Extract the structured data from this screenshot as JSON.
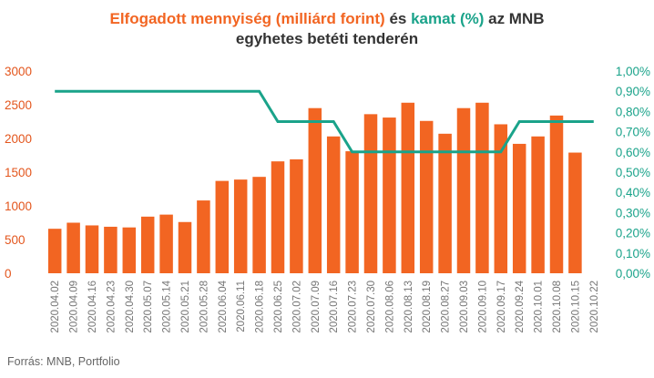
{
  "title": {
    "line1_part1": "Elfogadott mennyiség (milliárd forint)",
    "line1_part2": " és ",
    "line1_part3": "kamat (%)",
    "line1_part4": " az MNB",
    "line2": "egyhetes betéti tenderén"
  },
  "source": "Forrás: MNB, Portfolio",
  "colors": {
    "bar": "#f26522",
    "line": "#1aa38a",
    "title_orange": "#f26522",
    "title_green": "#1aa38a",
    "left_axis_text": "#e3551c",
    "right_axis_text": "#1aa38a"
  },
  "chart_data": {
    "type": "bar",
    "categories": [
      "2020.04.02",
      "2020.04.09",
      "2020.04.16",
      "2020.04.23",
      "2020.04.30",
      "2020.05.07",
      "2020.05.14",
      "2020.05.21",
      "2020.05.28",
      "2020.06.04",
      "2020.06.11",
      "2020.06.18",
      "2020.06.25",
      "2020.07.02",
      "2020.07.09",
      "2020.07.16",
      "2020.07.23",
      "2020.07.30",
      "2020.08.06",
      "2020.08.13",
      "2020.08.19",
      "2020.08.27",
      "2020.09.03",
      "2020.09.10",
      "2020.09.17",
      "2020.09.24",
      "2020.10.01",
      "2020.10.08",
      "2020.10.15",
      "2020.10.22"
    ],
    "series": [
      {
        "type": "bar",
        "axis": "left",
        "values": [
          660,
          750,
          710,
          690,
          680,
          840,
          870,
          760,
          1080,
          1370,
          1390,
          1430,
          1660,
          1690,
          2450,
          2030,
          1810,
          2360,
          2310,
          2530,
          2260,
          2070,
          2450,
          2530,
          2210,
          1920,
          2030,
          2340,
          1790,
          null
        ]
      },
      {
        "type": "line",
        "axis": "right",
        "values": [
          0.9,
          0.9,
          0.9,
          0.9,
          0.9,
          0.9,
          0.9,
          0.9,
          0.9,
          0.9,
          0.9,
          0.9,
          0.75,
          0.75,
          0.75,
          0.75,
          0.6,
          0.6,
          0.6,
          0.6,
          0.6,
          0.6,
          0.6,
          0.6,
          0.6,
          0.75,
          0.75,
          0.75,
          0.75,
          0.75
        ]
      }
    ],
    "y_left": {
      "ylim": [
        0,
        3000
      ],
      "ticks": [
        "0",
        "500",
        "1000",
        "1500",
        "2000",
        "2500",
        "3000"
      ]
    },
    "y_right": {
      "ylim": [
        0,
        1.0
      ],
      "ticks": [
        "0,00%",
        "0,10%",
        "0,20%",
        "0,30%",
        "0,40%",
        "0,50%",
        "0,60%",
        "0,70%",
        "0,80%",
        "0,90%",
        "1,00%"
      ]
    },
    "grid": false,
    "legend": "none"
  }
}
